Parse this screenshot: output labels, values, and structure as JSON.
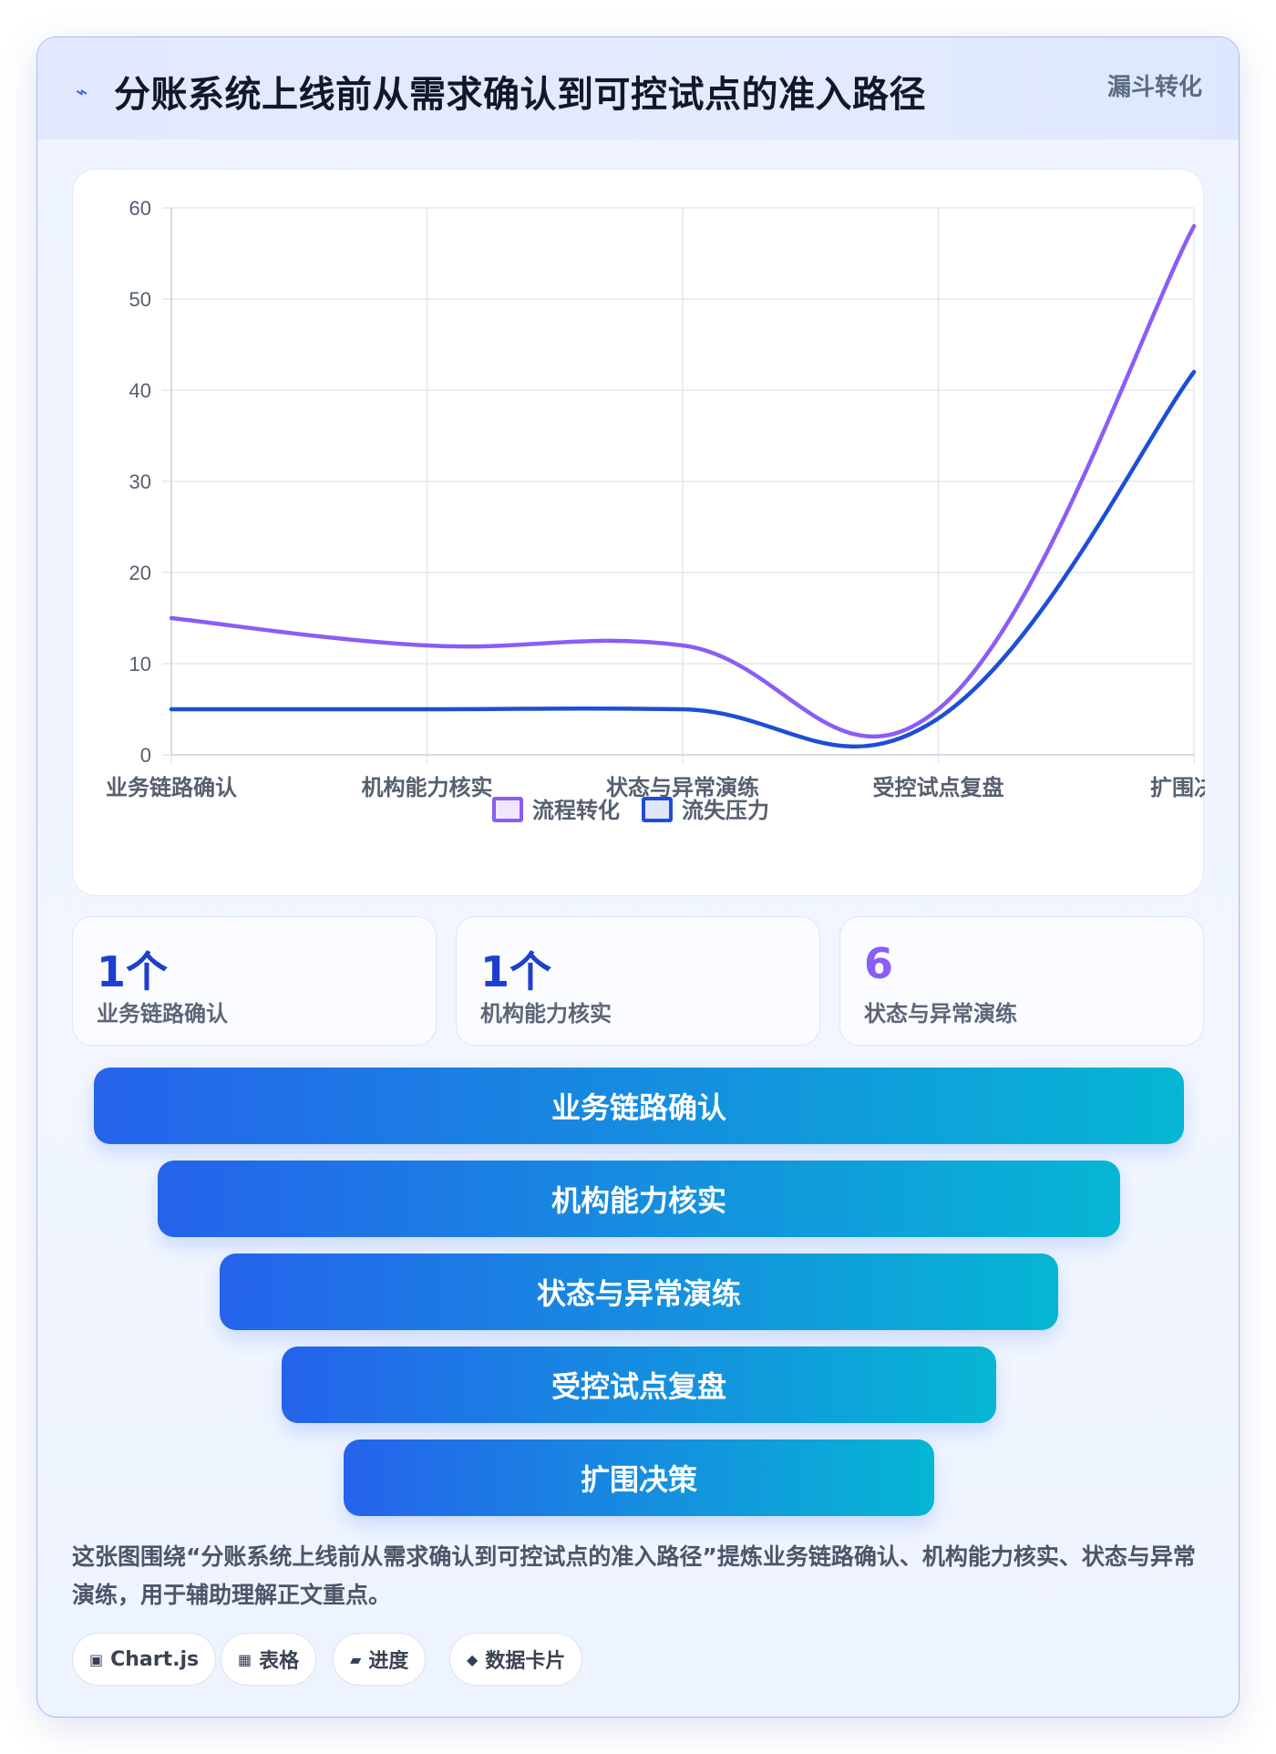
{
  "header": {
    "icon": "lightning-icon",
    "title": "分账系统上线前从需求确认到可控试点的准入路径",
    "tag": "漏斗转化"
  },
  "chart_data": {
    "type": "line",
    "categories": [
      "业务链路确认",
      "机构能力核实",
      "状态与异常演练",
      "受控试点复盘",
      "扩围决策"
    ],
    "series": [
      {
        "name": "流程转化",
        "values": [
          15,
          12,
          12,
          5,
          58
        ],
        "color": "#8b5cf6"
      },
      {
        "name": "流失压力",
        "values": [
          5,
          5,
          5,
          4,
          42
        ],
        "color": "#1d4ed8"
      }
    ],
    "ylim": [
      0,
      60
    ],
    "yticks": [
      0,
      10,
      20,
      30,
      40,
      50,
      60
    ],
    "grid": true,
    "legend": "bottom",
    "smooth": true
  },
  "stats": [
    {
      "value": "1个",
      "label": "业务链路确认",
      "color": "#1d3fd0"
    },
    {
      "value": "1个",
      "label": "机构能力核实",
      "color": "#1d3fd0"
    },
    {
      "value": "6",
      "label": "状态与异常演练",
      "color": "#8b5cf6"
    }
  ],
  "funnel": [
    "业务链路确认",
    "机构能力核实",
    "状态与异常演练",
    "受控试点复盘",
    "扩围决策"
  ],
  "description": "这张图围绕“分账系统上线前从需求确认到可控试点的准入路径”提炼业务链路确认、机构能力核实、状态与异常演练，用于辅助理解正文重点。",
  "chips": [
    {
      "icon": "chart-icon",
      "glyph": "▣",
      "label": "Chart.js"
    },
    {
      "icon": "table-icon",
      "glyph": "▦",
      "label": "表格"
    },
    {
      "icon": "progress-icon",
      "glyph": "▰",
      "label": "进度"
    },
    {
      "icon": "data-card-icon",
      "glyph": "◆",
      "label": "数据卡片"
    }
  ]
}
